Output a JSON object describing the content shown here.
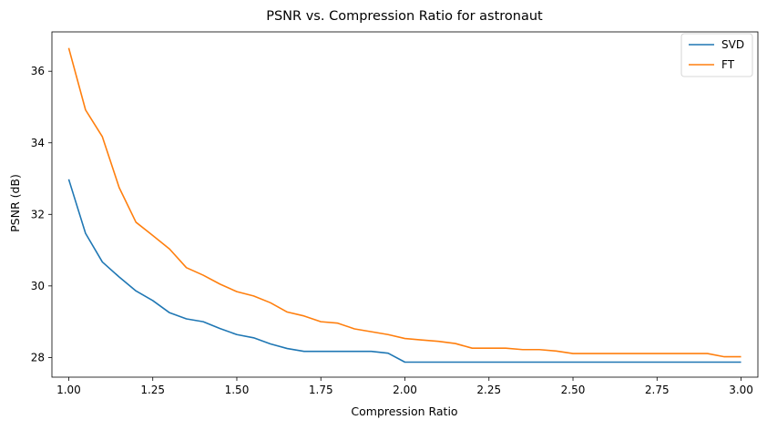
{
  "chart_data": {
    "type": "line",
    "title": "PSNR vs. Compression Ratio for astronaut",
    "xlabel": "Compression Ratio",
    "ylabel": "PSNR (dB)",
    "xlim": [
      0.95,
      3.05
    ],
    "ylim": [
      27.45,
      37.1
    ],
    "xticks": [
      1.0,
      1.25,
      1.5,
      1.75,
      2.0,
      2.25,
      2.5,
      2.75,
      3.0
    ],
    "xtick_labels": [
      "1.00",
      "1.25",
      "1.50",
      "1.75",
      "2.00",
      "2.25",
      "2.50",
      "2.75",
      "3.00"
    ],
    "yticks": [
      28,
      30,
      32,
      34,
      36
    ],
    "ytick_labels": [
      "28",
      "30",
      "32",
      "34",
      "36"
    ],
    "grid": false,
    "legend_position": "top-right",
    "x": [
      1.0,
      1.05,
      1.1,
      1.15,
      1.2,
      1.25,
      1.3,
      1.35,
      1.4,
      1.45,
      1.5,
      1.55,
      1.6,
      1.65,
      1.7,
      1.75,
      1.8,
      1.85,
      1.9,
      1.95,
      2.0,
      2.05,
      2.1,
      2.15,
      2.2,
      2.25,
      2.3,
      2.35,
      2.4,
      2.45,
      2.5,
      2.55,
      2.6,
      2.65,
      2.7,
      2.75,
      2.8,
      2.85,
      2.9,
      2.95,
      3.0
    ],
    "series": [
      {
        "name": "SVD",
        "color": "#1f77b4",
        "values": [
          32.98,
          31.47,
          30.67,
          30.25,
          29.86,
          29.59,
          29.25,
          29.08,
          29.0,
          28.81,
          28.64,
          28.55,
          28.38,
          28.25,
          28.17,
          28.17,
          28.17,
          28.17,
          28.17,
          28.12,
          27.87,
          27.87,
          27.87,
          27.87,
          27.87,
          27.87,
          27.87,
          27.87,
          27.87,
          27.87,
          27.87,
          27.87,
          27.87,
          27.87,
          27.87,
          27.87,
          27.87,
          27.87,
          27.87,
          27.87,
          27.87
        ]
      },
      {
        "name": "FT",
        "color": "#ff7f0e",
        "values": [
          36.65,
          34.92,
          34.17,
          32.75,
          31.78,
          31.41,
          31.03,
          30.51,
          30.3,
          30.05,
          29.84,
          29.72,
          29.53,
          29.27,
          29.16,
          29.0,
          28.96,
          28.8,
          28.72,
          28.64,
          28.53,
          28.49,
          28.45,
          28.39,
          28.26,
          28.26,
          28.26,
          28.22,
          28.22,
          28.18,
          28.11,
          28.11,
          28.11,
          28.11,
          28.11,
          28.11,
          28.11,
          28.11,
          28.11,
          28.02,
          28.02
        ]
      }
    ]
  }
}
